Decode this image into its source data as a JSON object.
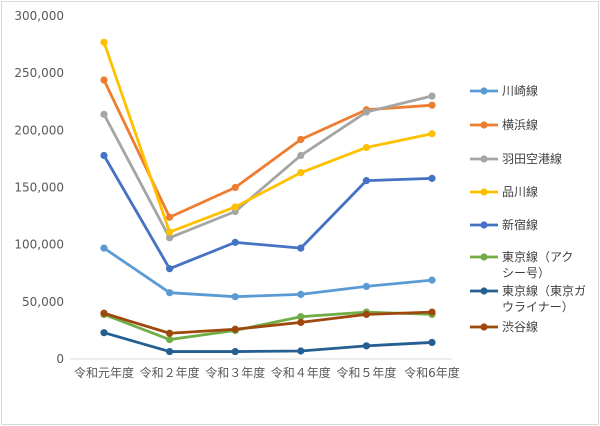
{
  "chart_data": {
    "type": "line",
    "categories": [
      "令和元年度",
      "令和２年度",
      "令和３年度",
      "令和４年度",
      "令和５年度",
      "令和6年度"
    ],
    "ylim": [
      0,
      300000
    ],
    "yticks": [
      "0",
      "50,000",
      "100,000",
      "150,000",
      "200,000",
      "250,000",
      "300,000"
    ],
    "grid": false,
    "legend_position": "right",
    "series": [
      {
        "name": "川崎線",
        "legend_lines": [
          "川崎線"
        ],
        "color": "#5B9BD5",
        "values": [
          97000,
          58000,
          54500,
          56500,
          63500,
          69000
        ]
      },
      {
        "name": "横浜線",
        "legend_lines": [
          "横浜線"
        ],
        "color": "#ED7D31",
        "values": [
          244000,
          124000,
          150000,
          192000,
          218000,
          222000
        ]
      },
      {
        "name": "羽田空港線",
        "legend_lines": [
          "羽田空港線"
        ],
        "color": "#A5A5A5",
        "values": [
          214000,
          106000,
          129000,
          178000,
          216000,
          230000
        ]
      },
      {
        "name": "品川線",
        "legend_lines": [
          "品川線"
        ],
        "color": "#FFC000",
        "values": [
          277000,
          111000,
          133000,
          163000,
          185000,
          197000
        ]
      },
      {
        "name": "新宿線",
        "legend_lines": [
          "新宿線"
        ],
        "color": "#4472C4",
        "values": [
          178000,
          79000,
          102000,
          97000,
          156000,
          158000
        ]
      },
      {
        "name": "東京線（アクシー号）",
        "legend_lines": [
          "東京線（アク",
          "シー号）"
        ],
        "color": "#70AD47",
        "values": [
          39000,
          17000,
          25000,
          37000,
          41000,
          39000
        ]
      },
      {
        "name": "東京線（東京ガウライナー）",
        "legend_lines": [
          "東京線（東京ガ",
          "ウライナー）"
        ],
        "color": "#255E91",
        "values": [
          23000,
          6500,
          6500,
          7000,
          11500,
          14500
        ]
      },
      {
        "name": "渋谷線",
        "legend_lines": [
          "渋谷線"
        ],
        "color": "#9E480E",
        "values": [
          40000,
          22500,
          26000,
          32000,
          39000,
          41000
        ]
      }
    ]
  }
}
